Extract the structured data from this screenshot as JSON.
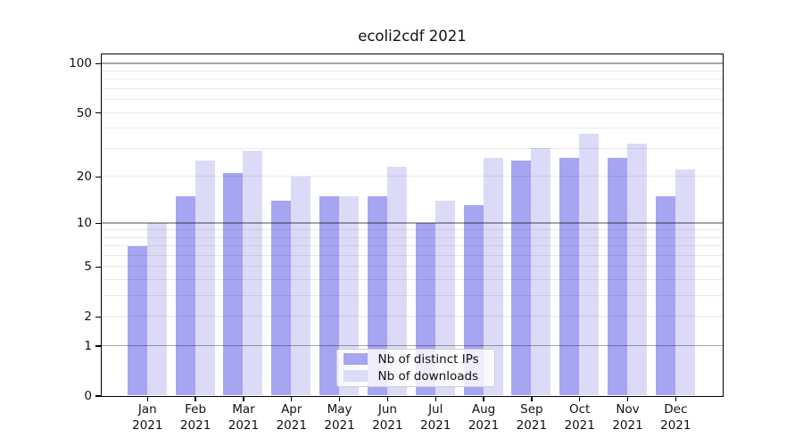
{
  "chart_data": {
    "type": "bar",
    "title": "ecoli2cdf 2021",
    "categories": [
      "Jan 2021",
      "Feb 2021",
      "Mar 2021",
      "Apr 2021",
      "May 2021",
      "Jun 2021",
      "Jul 2021",
      "Aug 2021",
      "Sep 2021",
      "Oct 2021",
      "Nov 2021",
      "Dec 2021"
    ],
    "series": [
      {
        "name": "Nb of distinct IPs",
        "color": "#a5a5f2",
        "values": [
          7,
          15,
          21,
          14,
          15,
          15,
          10,
          13,
          25,
          26,
          26,
          15
        ]
      },
      {
        "name": "Nb of downloads",
        "color": "#dbdbf8",
        "values": [
          10,
          25,
          29,
          20,
          15,
          23,
          14,
          26,
          30,
          37,
          32,
          22
        ]
      }
    ],
    "y_axis": {
      "scale": "log1p",
      "ticks": [
        0,
        1,
        2,
        5,
        10,
        20,
        50,
        100
      ],
      "major_gridlines": [
        1,
        10,
        100
      ],
      "minor_gridlines": [
        2,
        3,
        4,
        5,
        6,
        7,
        8,
        9,
        20,
        30,
        40,
        50,
        60,
        70,
        80,
        90
      ],
      "ylim": [
        0,
        112
      ]
    },
    "legend": {
      "position": "bottom-center"
    },
    "grid": true,
    "colors": {
      "axis": "#000000",
      "major_grid": "#a6a6a6",
      "minor_grid": "#e9e9e9",
      "legend_border": "#cfcfcf"
    }
  }
}
